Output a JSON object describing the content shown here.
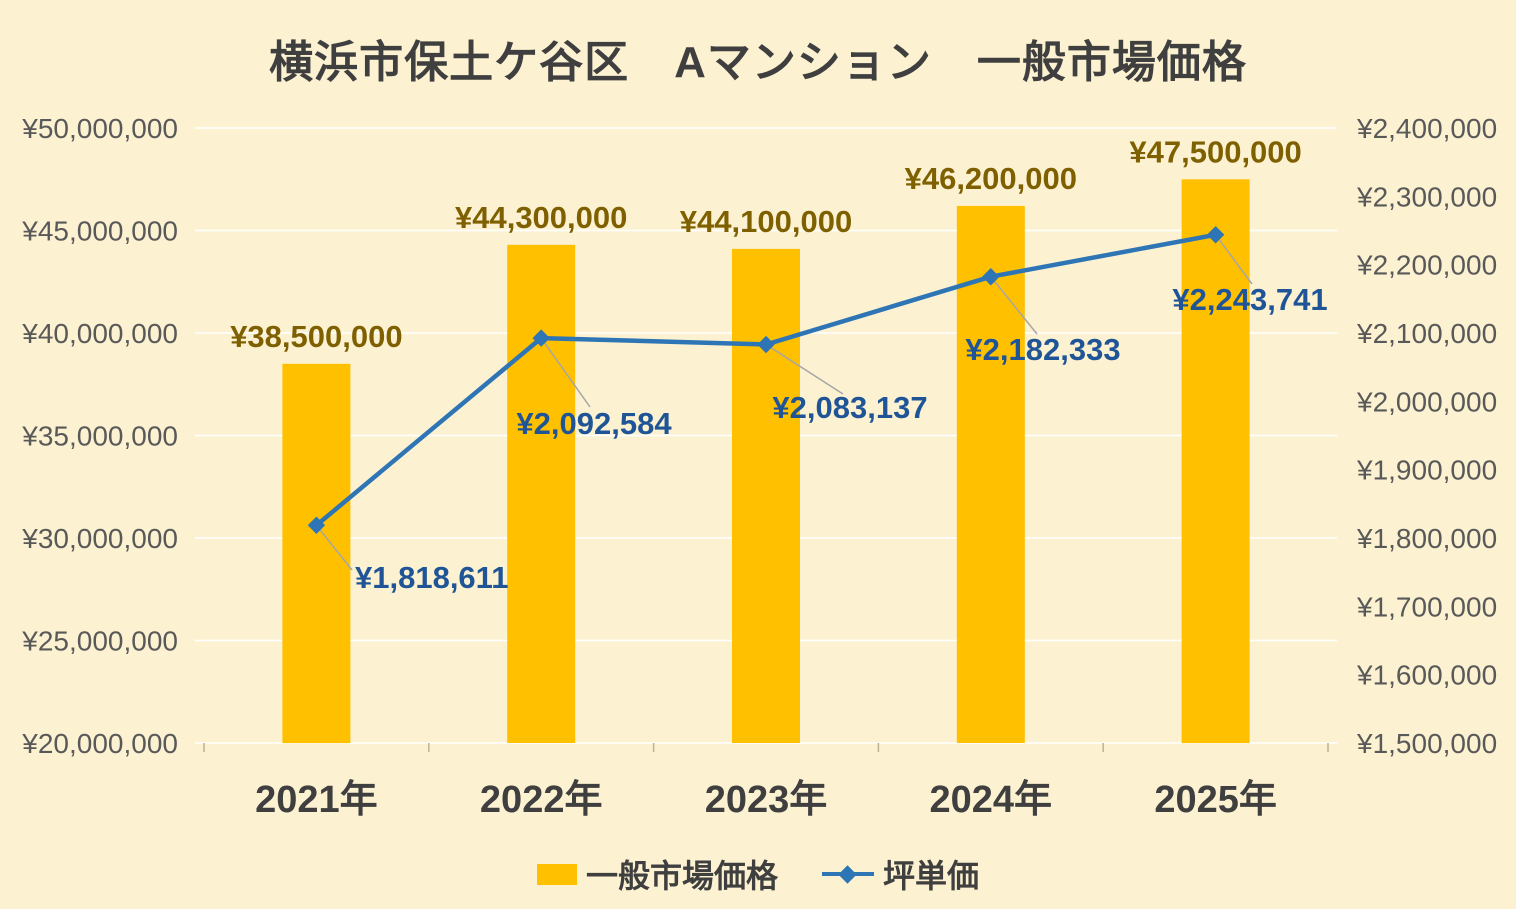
{
  "colors": {
    "background": "#FCF2D2",
    "title_text": "#3F3F3F",
    "axis_text": "#595959",
    "category_text": "#3F3F3F",
    "gridline": "#FFFFFF",
    "tick": "#BDB393",
    "bar": "#FFC000",
    "bar_label": "#7F6000",
    "line": "#2E75B6",
    "marker": "#2E75B6",
    "line_label": "#1F5597",
    "leader": "#A6A6A6",
    "legend_text": "#3F3F3F"
  },
  "chart_data": {
    "type": "combo bar+line",
    "title": "横浜市保土ケ谷区　Aマンション　一般市場価格",
    "categories": [
      "2021年",
      "2022年",
      "2023年",
      "2024年",
      "2025年"
    ],
    "series": [
      {
        "name": "一般市場価格",
        "type": "bar",
        "axis": "left",
        "values": [
          38500000,
          44300000,
          44100000,
          46200000,
          47500000
        ],
        "labels": [
          "¥38,500,000",
          "¥44,300,000",
          "¥44,100,000",
          "¥46,200,000",
          "¥47,500,000"
        ]
      },
      {
        "name": "坪単価",
        "type": "line",
        "axis": "right",
        "marker": "diamond",
        "values": [
          1818611,
          2092584,
          2083137,
          2182333,
          2243741
        ],
        "labels": [
          "¥1,818,611",
          "¥2,092,584",
          "¥2,083,137",
          "¥2,182,333",
          "¥2,243,741"
        ]
      }
    ],
    "left_axis": {
      "min": 20000000,
      "max": 50000000,
      "step": 5000000,
      "ticks": [
        "¥20,000,000",
        "¥25,000,000",
        "¥30,000,000",
        "¥35,000,000",
        "¥40,000,000",
        "¥45,000,000",
        "¥50,000,000"
      ]
    },
    "right_axis": {
      "min": 1500000,
      "max": 2400000,
      "step": 100000,
      "ticks": [
        "¥1,500,000",
        "¥1,600,000",
        "¥1,700,000",
        "¥1,800,000",
        "¥1,900,000",
        "¥2,000,000",
        "¥2,100,000",
        "¥2,200,000",
        "¥2,300,000",
        "¥2,400,000"
      ]
    },
    "grid": true,
    "legend_position": "bottom"
  }
}
